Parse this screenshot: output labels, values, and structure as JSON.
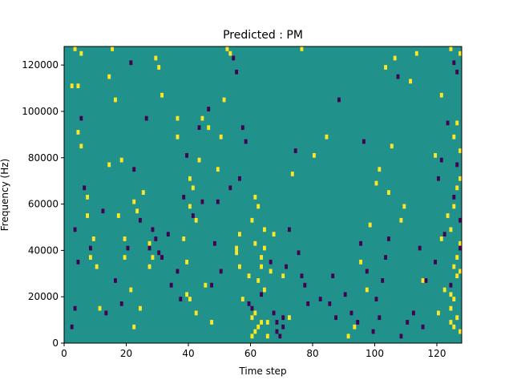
{
  "chart_data": {
    "type": "heatmap",
    "title": "Predicted : PM",
    "xlabel": "Time step",
    "ylabel": "Frequency (Hz)",
    "xlim": [
      0,
      128
    ],
    "ylim": [
      0,
      128000
    ],
    "x_ticks": [
      {
        "value": 0,
        "label": "0"
      },
      {
        "value": 20,
        "label": "20"
      },
      {
        "value": 40,
        "label": "40"
      },
      {
        "value": 60,
        "label": "60"
      },
      {
        "value": 80,
        "label": "80"
      },
      {
        "value": 100,
        "label": "100"
      },
      {
        "value": 120,
        "label": "120"
      }
    ],
    "y_ticks": [
      {
        "value": 0,
        "label": "0"
      },
      {
        "value": 20000,
        "label": "20000"
      },
      {
        "value": 40000,
        "label": "40000"
      },
      {
        "value": 60000,
        "label": "60000"
      },
      {
        "value": 80000,
        "label": "80000"
      },
      {
        "value": 100000,
        "label": "100000"
      },
      {
        "value": 120000,
        "label": "120000"
      }
    ],
    "colormap": "viridis",
    "colors": {
      "background": "#21918c",
      "high": "#fde725",
      "low": "#440154"
    },
    "grid": false,
    "legend": "none",
    "cell_width": 1,
    "cell_height": 2000,
    "cells": {
      "high": [
        [
          3,
          126000
        ],
        [
          5,
          124000
        ],
        [
          2,
          110000
        ],
        [
          4,
          110000
        ],
        [
          5,
          84000
        ],
        [
          4,
          90000
        ],
        [
          7,
          62000
        ],
        [
          7,
          54000
        ],
        [
          9,
          44000
        ],
        [
          10,
          32000
        ],
        [
          8,
          36000
        ],
        [
          11,
          14000
        ],
        [
          15,
          126000
        ],
        [
          14,
          114000
        ],
        [
          14,
          76000
        ],
        [
          18,
          78000
        ],
        [
          16,
          104000
        ],
        [
          17,
          54000
        ],
        [
          19,
          36000
        ],
        [
          19,
          44000
        ],
        [
          21,
          22000
        ],
        [
          22,
          6000
        ],
        [
          24,
          14000
        ],
        [
          22,
          60000
        ],
        [
          23,
          56000
        ],
        [
          25,
          64000
        ],
        [
          27,
          42000
        ],
        [
          28,
          36000
        ],
        [
          27,
          32000
        ],
        [
          29,
          122000
        ],
        [
          30,
          118000
        ],
        [
          31,
          106000
        ],
        [
          36,
          96000
        ],
        [
          36,
          88000
        ],
        [
          39,
          20000
        ],
        [
          40,
          18000
        ],
        [
          42,
          12000
        ],
        [
          40,
          58000
        ],
        [
          39,
          34000
        ],
        [
          38,
          44000
        ],
        [
          40,
          70000
        ],
        [
          41,
          66000
        ],
        [
          42,
          52000
        ],
        [
          43,
          78000
        ],
        [
          44,
          96000
        ],
        [
          46,
          92000
        ],
        [
          45,
          24000
        ],
        [
          47,
          8000
        ],
        [
          49,
          74000
        ],
        [
          52,
          126000
        ],
        [
          53,
          124000
        ],
        [
          51,
          104000
        ],
        [
          50,
          88000
        ],
        [
          55,
          38000
        ],
        [
          56,
          32000
        ],
        [
          57,
          18000
        ],
        [
          56,
          46000
        ],
        [
          55,
          40000
        ],
        [
          59,
          28000
        ],
        [
          60,
          2000
        ],
        [
          60,
          10000
        ],
        [
          61,
          4000
        ],
        [
          61,
          12000
        ],
        [
          62,
          6000
        ],
        [
          63,
          8000
        ],
        [
          60,
          52000
        ],
        [
          61,
          62000
        ],
        [
          62,
          58000
        ],
        [
          61,
          42000
        ],
        [
          62,
          26000
        ],
        [
          63,
          36000
        ],
        [
          63,
          32000
        ],
        [
          64,
          48000
        ],
        [
          64,
          22000
        ],
        [
          64,
          40000
        ],
        [
          65,
          8000
        ],
        [
          65,
          2000
        ],
        [
          66,
          30000
        ],
        [
          67,
          46000
        ],
        [
          70,
          28000
        ],
        [
          72,
          10000
        ],
        [
          73,
          72000
        ],
        [
          76,
          126000
        ],
        [
          80,
          80000
        ],
        [
          84,
          88000
        ],
        [
          91,
          2000
        ],
        [
          93,
          6000
        ],
        [
          95,
          34000
        ],
        [
          97,
          22000
        ],
        [
          98,
          50000
        ],
        [
          100,
          68000
        ],
        [
          101,
          74000
        ],
        [
          104,
          64000
        ],
        [
          105,
          84000
        ],
        [
          103,
          118000
        ],
        [
          106,
          122000
        ],
        [
          108,
          52000
        ],
        [
          109,
          58000
        ],
        [
          111,
          112000
        ],
        [
          113,
          124000
        ],
        [
          115,
          26000
        ],
        [
          119,
          80000
        ],
        [
          121,
          44000
        ],
        [
          123,
          54000
        ],
        [
          124,
          48000
        ],
        [
          124,
          14000
        ],
        [
          124,
          8000
        ],
        [
          125,
          6000
        ],
        [
          126,
          10000
        ],
        [
          127,
          4000
        ],
        [
          125,
          32000
        ],
        [
          126,
          36000
        ],
        [
          127,
          30000
        ],
        [
          124,
          20000
        ],
        [
          125,
          18000
        ],
        [
          126,
          28000
        ],
        [
          127,
          42000
        ],
        [
          125,
          58000
        ],
        [
          126,
          66000
        ],
        [
          127,
          70000
        ],
        [
          125,
          88000
        ],
        [
          126,
          94000
        ],
        [
          127,
          82000
        ],
        [
          127,
          124000
        ],
        [
          124,
          126000
        ],
        [
          122,
          22000
        ],
        [
          120,
          12000
        ],
        [
          121,
          106000
        ]
      ],
      "low": [
        [
          2,
          6000
        ],
        [
          3,
          14000
        ],
        [
          4,
          34000
        ],
        [
          3,
          48000
        ],
        [
          5,
          96000
        ],
        [
          6,
          66000
        ],
        [
          8,
          40000
        ],
        [
          12,
          56000
        ],
        [
          13,
          12000
        ],
        [
          16,
          26000
        ],
        [
          18,
          16000
        ],
        [
          20,
          40000
        ],
        [
          21,
          120000
        ],
        [
          22,
          74000
        ],
        [
          24,
          52000
        ],
        [
          26,
          96000
        ],
        [
          27,
          40000
        ],
        [
          28,
          48000
        ],
        [
          29,
          44000
        ],
        [
          30,
          38000
        ],
        [
          31,
          36000
        ],
        [
          34,
          24000
        ],
        [
          33,
          46000
        ],
        [
          36,
          30000
        ],
        [
          37,
          18000
        ],
        [
          38,
          62000
        ],
        [
          39,
          80000
        ],
        [
          41,
          54000
        ],
        [
          43,
          92000
        ],
        [
          44,
          60000
        ],
        [
          46,
          100000
        ],
        [
          47,
          24000
        ],
        [
          48,
          42000
        ],
        [
          49,
          60000
        ],
        [
          50,
          30000
        ],
        [
          53,
          66000
        ],
        [
          54,
          122000
        ],
        [
          55,
          116000
        ],
        [
          56,
          70000
        ],
        [
          57,
          92000
        ],
        [
          58,
          86000
        ],
        [
          59,
          16000
        ],
        [
          60,
          14000
        ],
        [
          63,
          20000
        ],
        [
          66,
          34000
        ],
        [
          67,
          12000
        ],
        [
          68,
          4000
        ],
        [
          68,
          8000
        ],
        [
          69,
          2000
        ],
        [
          70,
          6000
        ],
        [
          70,
          10000
        ],
        [
          71,
          32000
        ],
        [
          72,
          48000
        ],
        [
          74,
          82000
        ],
        [
          75,
          38000
        ],
        [
          76,
          28000
        ],
        [
          77,
          24000
        ],
        [
          78,
          16000
        ],
        [
          82,
          18000
        ],
        [
          85,
          16000
        ],
        [
          86,
          28000
        ],
        [
          87,
          10000
        ],
        [
          88,
          104000
        ],
        [
          90,
          20000
        ],
        [
          92,
          12000
        ],
        [
          94,
          8000
        ],
        [
          95,
          42000
        ],
        [
          96,
          86000
        ],
        [
          97,
          30000
        ],
        [
          99,
          4000
        ],
        [
          100,
          18000
        ],
        [
          101,
          10000
        ],
        [
          102,
          26000
        ],
        [
          103,
          36000
        ],
        [
          104,
          44000
        ],
        [
          107,
          114000
        ],
        [
          108,
          2000
        ],
        [
          110,
          8000
        ],
        [
          112,
          12000
        ],
        [
          114,
          40000
        ],
        [
          115,
          6000
        ],
        [
          116,
          26000
        ],
        [
          119,
          34000
        ],
        [
          120,
          70000
        ],
        [
          121,
          78000
        ],
        [
          122,
          46000
        ],
        [
          123,
          94000
        ],
        [
          124,
          24000
        ],
        [
          125,
          62000
        ],
        [
          126,
          76000
        ],
        [
          127,
          52000
        ],
        [
          125,
          120000
        ],
        [
          126,
          116000
        ],
        [
          127,
          40000
        ]
      ]
    }
  }
}
